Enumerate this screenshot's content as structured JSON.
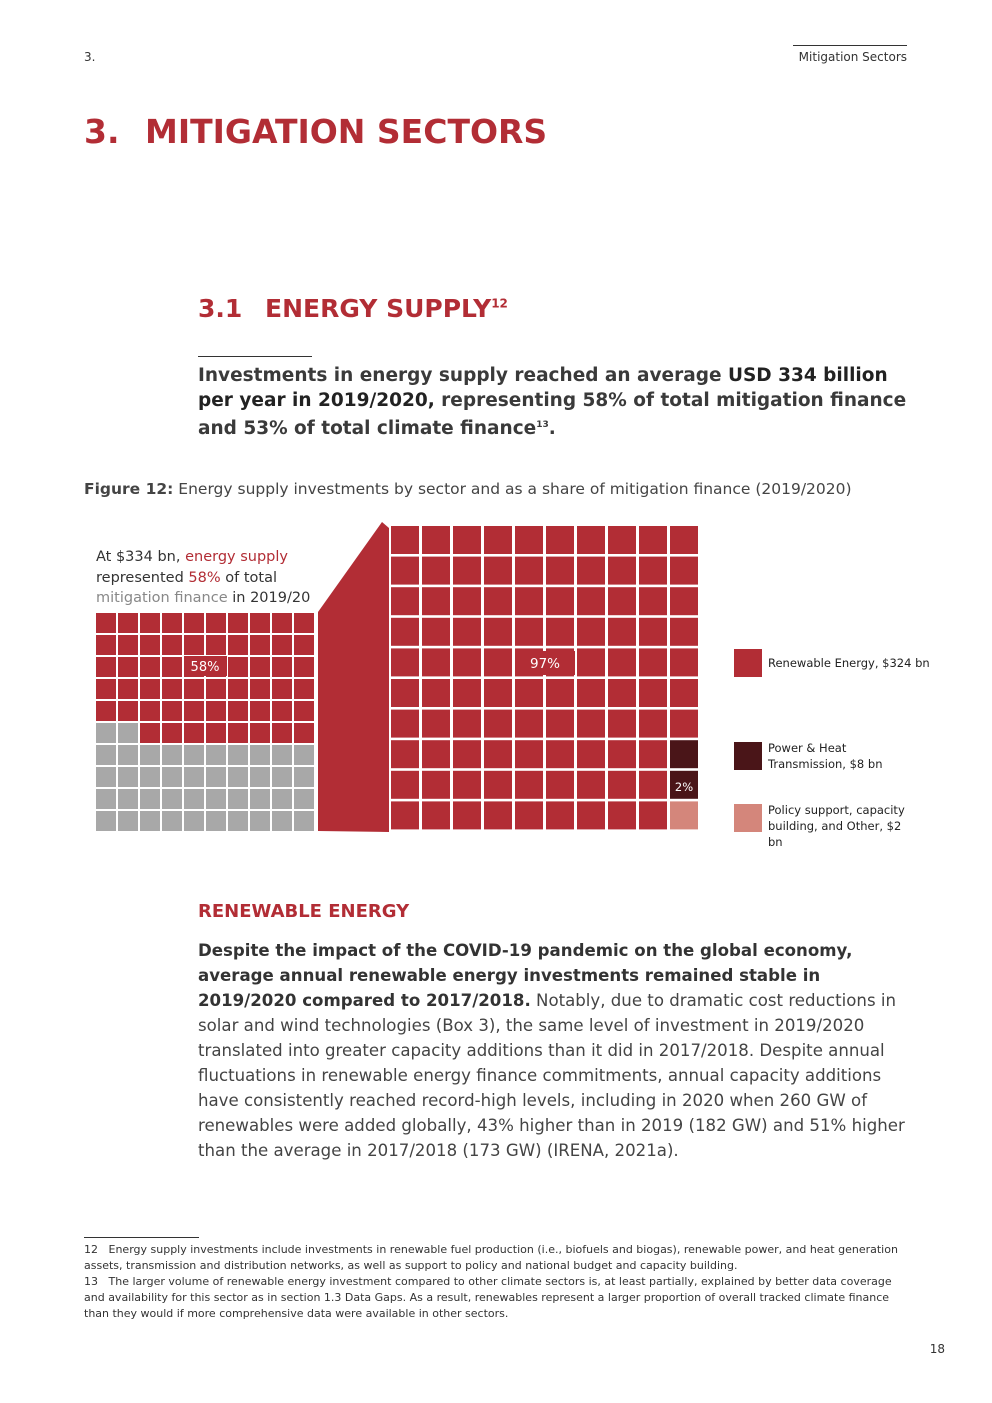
{
  "header": {
    "section": "3.",
    "title": "Mitigation Sectors"
  },
  "chapter": {
    "number": "3.",
    "title": "MITIGATION SECTORS"
  },
  "section": {
    "number": "3.1",
    "title": "ENERGY SUPPLY",
    "footnote_ref": "12"
  },
  "intro": {
    "parts": [
      "Investments in energy supply reached an average ",
      "USD 334 billion per year in 2019/2020,",
      " representing 58% of total mitigation finance and 53% of total climate finance",
      "13",
      "."
    ]
  },
  "figure": {
    "label": "Figure 12:",
    "caption": "Energy supply investments by sector and as a share of mitigation finance (2019/2020)",
    "annotation": [
      "At $334 bn, ",
      "energy supply",
      " represented ",
      "58%",
      " of total ",
      "mitigation finance",
      " in 2019/20"
    ],
    "share": {
      "value": 58,
      "label": "58%"
    },
    "breakdown": [
      {
        "value": 97,
        "label": "97%",
        "legend": "Renewable Energy, $324 bn",
        "color": "#b22d35"
      },
      {
        "value": 2,
        "label": "2%",
        "legend": "Power & Heat Transmission, $8 bn",
        "color": "#4a1518"
      },
      {
        "legend": "Policy support, capacity building, and Other, $2 bn",
        "color": "#d4867b"
      }
    ]
  },
  "renewable": {
    "heading": "RENEWABLE ENERGY",
    "lead": "Despite the impact of the COVID-19 pandemic on the global economy, average annual renewable energy investments remained stable in 2019/2020 compared to 2017/2018.",
    "body": " Notably, due to dramatic cost reductions in solar and wind technologies (Box 3), the same level of investment in 2019/2020 translated into greater capacity additions than it did in 2017/2018. Despite annual fluctuations in renewable energy finance commitments, annual capacity additions have consistently reached record-high levels, including in 2020 when 260 GW of renewables were added globally, 43% higher than in 2019 (182 GW) and 51% higher than the average in 2017/2018 (173 GW) (IRENA, 2021a)."
  },
  "footnotes": [
    {
      "number": "12",
      "text": "Energy supply investments include investments in renewable fuel production (i.e., biofuels and biogas), renewable power, and heat generation assets, transmission and distribution networks, as well as support to policy and national budget and capacity building."
    },
    {
      "number": "13",
      "text": "The larger volume of renewable energy investment compared to other climate sectors is, at least partially, explained by better data coverage and availability for this sector as in section 1.3 Data Gaps. As a result, renewables represent a larger proportion of overall tracked climate finance than they would if more comprehensive data were available in other sectors."
    }
  ],
  "page_number": "18"
}
